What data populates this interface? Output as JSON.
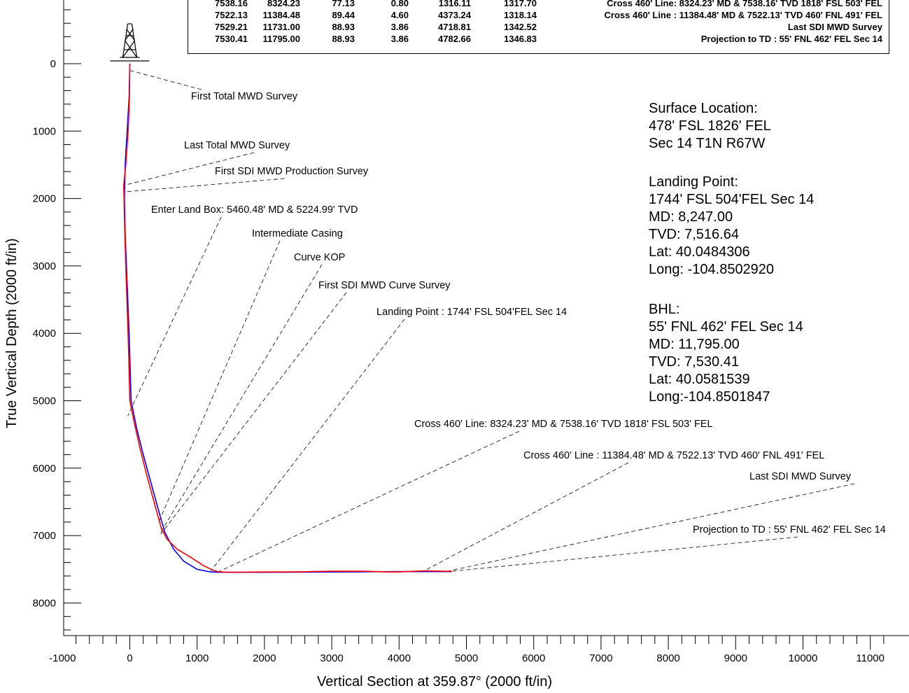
{
  "chart_data": {
    "type": "line",
    "xlabel": "Vertical Section at 359.87° (2000 ft/in)",
    "ylabel": "True Vertical Depth (2000 ft/in)",
    "xlim": [
      -1000,
      11000
    ],
    "ylim": [
      0,
      8000
    ],
    "xticks": [
      "-1000",
      "0",
      "1000",
      "2000",
      "3000",
      "4000",
      "5000",
      "6000",
      "7000",
      "8000",
      "9000",
      "10000",
      "11000"
    ],
    "yticks": [
      "0",
      "1000",
      "2000",
      "3000",
      "4000",
      "5000",
      "6000",
      "7000",
      "8000"
    ],
    "series": [
      {
        "color": "#0000ff",
        "x": [
          0,
          -10,
          -40,
          -70,
          -80,
          -70,
          -50,
          -30,
          -10,
          20,
          100,
          200,
          310,
          420,
          520,
          650,
          800,
          1000,
          1200,
          1350,
          2000,
          3000,
          4000,
          4782.66
        ],
        "y": [
          0,
          500,
          1000,
          1500,
          2000,
          2500,
          3000,
          3500,
          4000,
          5000,
          5400,
          5800,
          6200,
          6600,
          6950,
          7200,
          7380,
          7500,
          7540,
          7545,
          7545,
          7540,
          7535,
          7535
        ]
      },
      {
        "color": "#ff0000",
        "x": [
          0,
          -5,
          -25,
          -60,
          -90,
          -80,
          -60,
          -40,
          -20,
          0,
          60,
          150,
          250,
          360,
          470,
          500,
          550,
          700,
          900,
          1100,
          1250,
          1316.11,
          1500,
          2000,
          2500,
          3000,
          3500,
          3800,
          4000,
          4373.24,
          4718.81,
          4782.66
        ],
        "y": [
          0,
          500,
          1000,
          1500,
          1800,
          2300,
          3000,
          3600,
          4200,
          5000,
          5300,
          5700,
          6100,
          6500,
          6900,
          6950,
          7050,
          7200,
          7320,
          7450,
          7520,
          7538.16,
          7545,
          7540,
          7538,
          7530,
          7530,
          7540,
          7540,
          7522.13,
          7529.21,
          7530.41
        ]
      }
    ],
    "annotations": [
      {
        "text": "First Total MWD Survey",
        "x": 0,
        "y": 100
      },
      {
        "text": "Last Total MWD Survey",
        "x": -70,
        "y": 1800
      },
      {
        "text": "First SDI MWD Production Survey",
        "x": -70,
        "y": 1900
      },
      {
        "text": "Enter Land Box: 5460.48' MD & 5224.99' TVD",
        "x": -30,
        "y": 5225
      },
      {
        "text": "Intermediate Casing",
        "x": 430,
        "y": 6800
      },
      {
        "text": "Curve KOP",
        "x": 460,
        "y": 6950
      },
      {
        "text": "First SDI MWD Curve Survey",
        "x": 460,
        "y": 6980
      },
      {
        "text": "Landing Point : 1744' FSL  504'FEL  Sec 14",
        "x": 1200,
        "y": 7530
      },
      {
        "text": "Cross 460' Line: 8324.23' MD & 7538.16' TVD 1818' FSL  503' FEL",
        "x": 1316.11,
        "y": 7538.16
      },
      {
        "text": "Cross 460' Line : 11384.48' MD & 7522.13' TVD 460' FNL  491' FEL",
        "x": 4373.24,
        "y": 7522.13
      },
      {
        "text": "Last SDI MWD Survey",
        "x": 4718.81,
        "y": 7529.21
      },
      {
        "text": "Projection to TD : 55' FNL  462' FEL  Sec 14",
        "x": 4782.66,
        "y": 7530.41
      }
    ],
    "grid": false
  },
  "survey_table": {
    "rows": [
      [
        "7538.16",
        "8324.23",
        "77.13",
        "0.80",
        "1316.11",
        "1317.70",
        "Cross 460' Line: 8324.23' MD & 7538.16' TVD 1818' FSL  503' FEL"
      ],
      [
        "7522.13",
        "11384.48",
        "89.44",
        "4.60",
        "4373.24",
        "1318.14",
        "Cross 460' Line : 11384.48' MD & 7522.13' TVD 460' FNL  491' FEL"
      ],
      [
        "7529.21",
        "11731.00",
        "88.93",
        "3.86",
        "4718.81",
        "1342.52",
        "Last SDI MWD Survey"
      ],
      [
        "7530.41",
        "11795.00",
        "88.93",
        "3.86",
        "4782.66",
        "1346.83",
        "Projection to TD : 55' FNL  462' FEL  Sec 14"
      ]
    ]
  },
  "info": {
    "surface": "Surface Location:\n478' FSL 1826' FEL\nSec 14 T1N R67W",
    "landing": "Landing Point:\n1744' FSL 504'FEL Sec 14\nMD: 8,247.00\nTVD: 7,516.64\nLat: 40.0484306\nLong: -104.8502920",
    "bhl": "BHL:\n55' FNL 462' FEL Sec 14\nMD: 11,795.00\nTVD: 7,530.41\nLat: 40.0581539\nLong:-104.8501847"
  }
}
